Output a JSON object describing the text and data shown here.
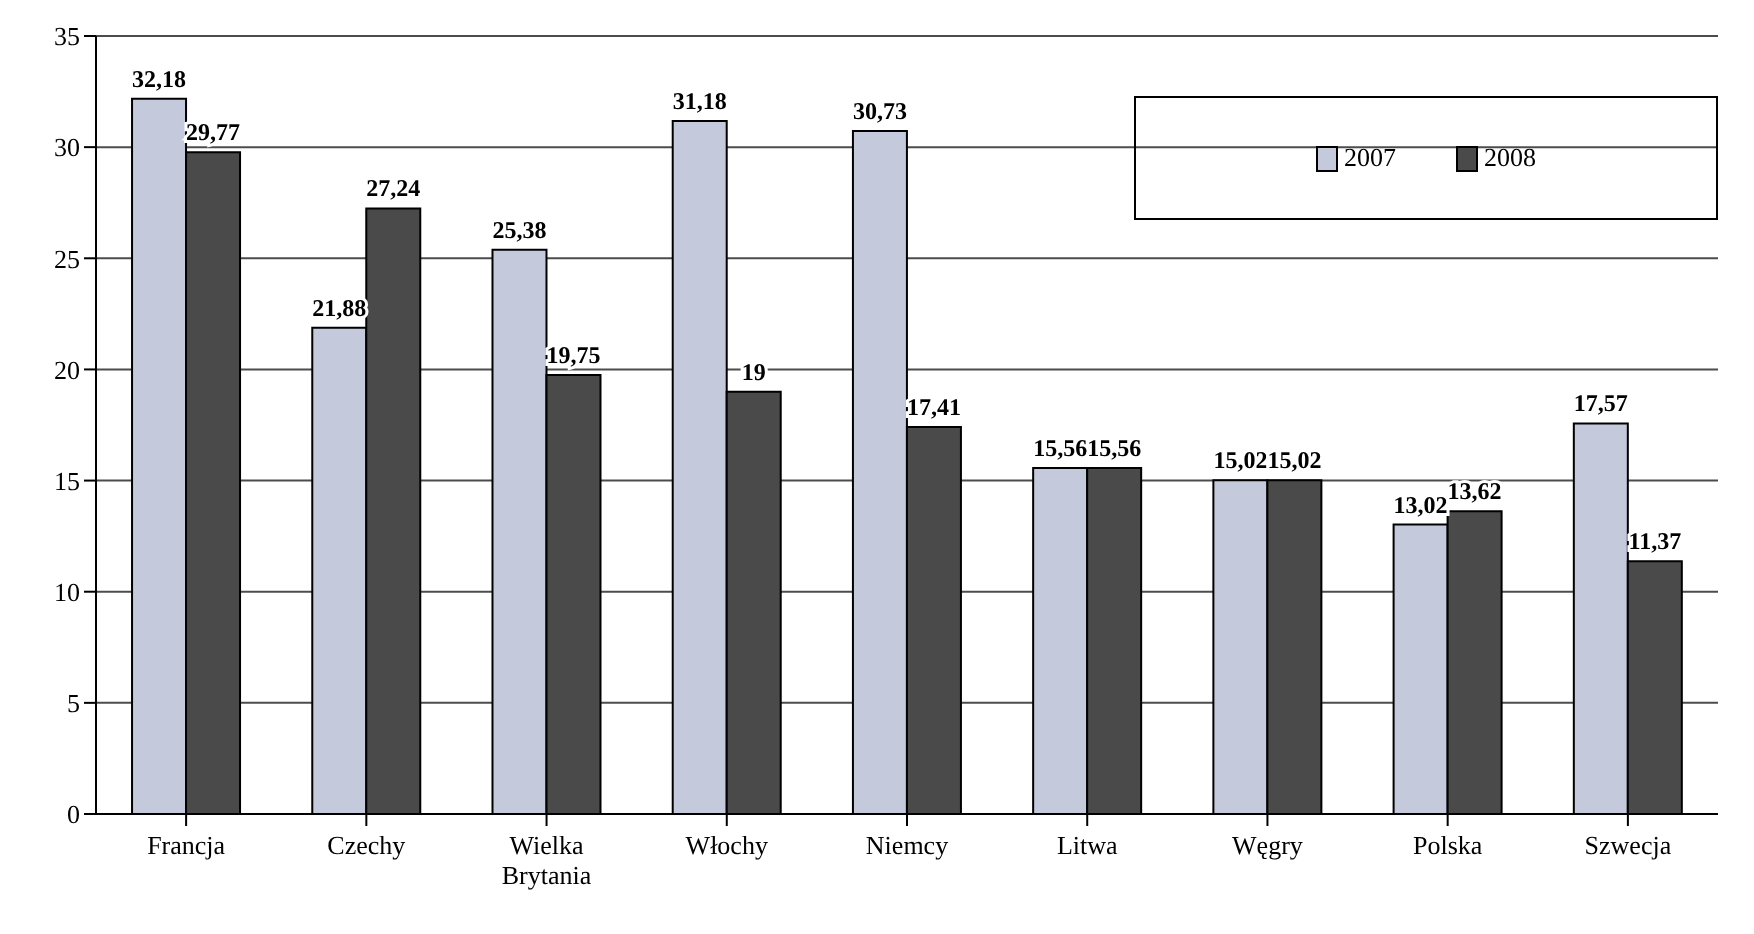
{
  "chart_data": {
    "type": "bar",
    "categories": [
      "Francja",
      "Czechy",
      "Wielka Brytania",
      "Włochy",
      "Niemcy",
      "Litwa",
      "Węgry",
      "Polska",
      "Szwecja"
    ],
    "series": [
      {
        "name": "2007",
        "color": "#c4c9dc",
        "values": [
          32.18,
          21.88,
          25.38,
          31.18,
          30.73,
          15.56,
          15.02,
          13.02,
          17.57
        ],
        "value_labels": [
          "32,18",
          "21,88",
          "25,38",
          "31,18",
          "30,73",
          "15,56",
          "15,02",
          "13,02",
          "17,57"
        ]
      },
      {
        "name": "2008",
        "color": "#4a4a4a",
        "values": [
          29.77,
          27.24,
          19.75,
          19,
          17.41,
          15.56,
          15.02,
          13.62,
          11.37
        ],
        "value_labels": [
          "29,77",
          "27,24",
          "19,75",
          "19",
          "17,41",
          "15,56",
          "15,02",
          "13,62",
          "11,37"
        ]
      }
    ],
    "ylim": [
      0,
      35
    ],
    "yticks": [
      0,
      5,
      10,
      15,
      20,
      25,
      30,
      35
    ],
    "grid": "y",
    "legend": "top right"
  }
}
